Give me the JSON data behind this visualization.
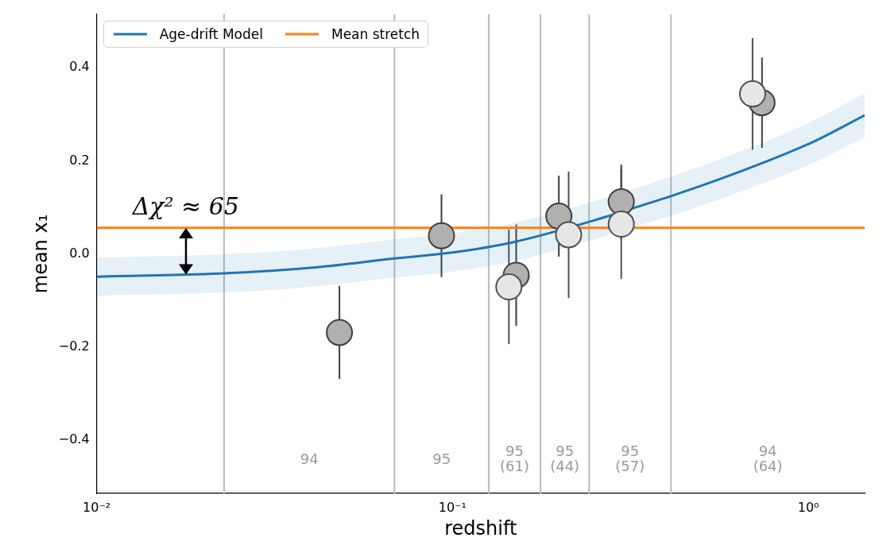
{
  "chart_data": {
    "type": "scatter",
    "xlabel": "redshift",
    "ylabel": "mean x₁",
    "xlim": [
      0.01,
      1.44
    ],
    "ylim": [
      -0.515,
      0.515
    ],
    "log": "x",
    "grid": false,
    "legend": "top left",
    "marker": "circle",
    "xticks": [
      {
        "value": 0.01,
        "label": "10⁻²"
      },
      {
        "value": 0.1,
        "label": "10⁻¹"
      },
      {
        "value": 1,
        "label": "10⁰"
      }
    ],
    "yticks": [
      {
        "value": -0.4,
        "label": "−0.4"
      },
      {
        "value": -0.2,
        "label": "−0.2"
      },
      {
        "value": 0,
        "label": "0.0"
      },
      {
        "value": 0.2,
        "label": "0.2"
      },
      {
        "value": 0.4,
        "label": "0.4"
      }
    ],
    "series": [
      {
        "type": "line",
        "marker": "none",
        "name": "Age-drift Model",
        "color": "#1f77b4",
        "x": [
          0.01,
          0.0228,
          0.0413,
          0.0687,
          0.1,
          0.146,
          0.25,
          0.35,
          0.411,
          0.639,
          1.02,
          1.44
        ],
        "values": [
          -0.049,
          -0.042,
          -0.029,
          -0.01,
          0.003,
          0.024,
          0.072,
          0.107,
          0.124,
          0.176,
          0.239,
          0.298
        ],
        "lower": [
          -0.09,
          -0.083,
          -0.07,
          -0.051,
          -0.038,
          -0.017,
          0.031,
          0.066,
          0.082,
          0.133,
          0.194,
          0.251
        ],
        "upper": [
          -0.008,
          -0.001,
          0.012,
          0.031,
          0.044,
          0.065,
          0.113,
          0.148,
          0.166,
          0.219,
          0.284,
          0.345
        ]
      },
      {
        "type": "line",
        "marker": "none",
        "name": "Mean stretch",
        "color": "#ff7f0e",
        "x": [
          0.01,
          1.44
        ],
        "values": [
          0.056,
          0.056
        ]
      },
      {
        "color": "#e6e6e6",
        "x": [
          0.144,
          0.212,
          0.298,
          0.697
        ],
        "values": [
          -0.071,
          0.041,
          0.064,
          0.344
        ],
        "errors": [
          0.123,
          0.136,
          0.118,
          0.12
        ]
      },
      {
        "color": "#b0b0b0",
        "x": [
          0.0481,
          0.0931,
          0.151,
          0.199,
          0.298,
          0.741
        ],
        "values": [
          -0.169,
          0.039,
          -0.046,
          0.081,
          0.112,
          0.325
        ],
        "errors": [
          0.1,
          0.089,
          0.109,
          0.087,
          0.08,
          0.097
        ]
      }
    ],
    "ref_lines": [
      {
        "axis": "x",
        "value": 0.0228,
        "color": "#bbbbbb"
      },
      {
        "axis": "x",
        "value": 0.0687,
        "color": "#bbbbbb"
      },
      {
        "axis": "x",
        "value": 0.1264,
        "color": "#bbbbbb"
      },
      {
        "axis": "x",
        "value": 0.1767,
        "color": "#bbbbbb"
      },
      {
        "axis": "x",
        "value": 0.242,
        "color": "#bbbbbb"
      },
      {
        "axis": "x",
        "value": 0.411,
        "color": "#bbbbbb"
      }
    ],
    "annotations": [
      {
        "text": "Δχ² ≈ 65",
        "x": 0.0178,
        "y": 0.056
      },
      "94",
      "95",
      "95\n(61)",
      "95\n(44)",
      "95\n(57)",
      "94\n(64)"
    ]
  }
}
